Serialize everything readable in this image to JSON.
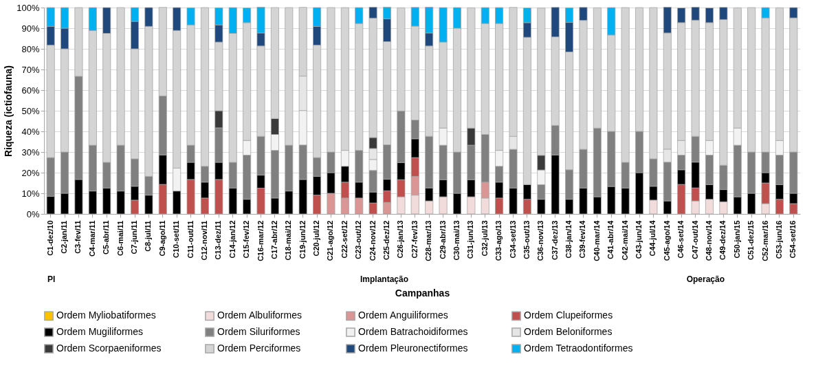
{
  "chart_data": {
    "type": "bar",
    "stacked": true,
    "xlabel": "Campanhas",
    "ylabel": "Riqueza (ictiofauna)",
    "categories": [
      "C1-dez/10",
      "C2-jan/11",
      "C3-fev/11",
      "C4-mar/11",
      "C5-abr/11",
      "C6-mai/11",
      "C7-jun/11",
      "C8-jul/11",
      "C9-ago/11",
      "C10-set/11",
      "C11-out/11",
      "C12-nov/11",
      "C13-dez/11",
      "C14-jan/12",
      "C15-fev/12",
      "C16-mar/12",
      "C17-abr/12",
      "C18-mai/12",
      "C19-jun/12",
      "C20-jul/12",
      "C21-ago/12",
      "C22-set/12",
      "C23-out/12",
      "C24-nov/12",
      "C25-dez/12",
      "C26-jan/13",
      "C27-fev/13",
      "C28-mar/13",
      "C29-abr/13",
      "C30-mai/13",
      "C31-jun/13",
      "C32-jul/13",
      "C33-ago/13",
      "C34-set/13",
      "C35-out/13",
      "C36-nov/13",
      "C37-dez/13",
      "C38-jan/14",
      "C39-fev/14",
      "C40-mar/14",
      "C41-abr/14",
      "C42-mai/14",
      "C43-jun/14",
      "C44-jul/14",
      "C45-ago/14",
      "C46-set/14",
      "C47-out/14",
      "C48-nov/14",
      "C49-dez/14",
      "C50-jan/15",
      "C51-dez/15",
      "C52-mar/16",
      "C53-jun/16",
      "C54-set/16"
    ],
    "series": [
      {
        "name": "Ordem Myliobatiformes",
        "color": "#ffc000",
        "values": [
          null,
          null,
          null,
          null,
          null,
          null,
          null,
          null,
          null,
          null,
          null,
          null,
          null,
          null,
          null,
          null,
          null,
          null,
          null,
          null,
          null,
          null,
          null,
          null,
          null,
          null,
          null,
          null,
          null,
          null,
          null,
          null,
          null,
          null,
          null,
          null,
          null,
          null,
          null,
          null,
          null,
          null,
          null,
          null,
          null,
          null,
          null,
          null,
          null,
          null,
          null,
          null,
          null,
          null
        ]
      },
      {
        "name": "Ordem Albuliformes",
        "color": "#f2dcdb",
        "values": [
          null,
          null,
          null,
          null,
          null,
          null,
          null,
          null,
          null,
          null,
          null,
          null,
          null,
          null,
          null,
          null,
          null,
          null,
          null,
          null,
          null,
          null,
          null,
          null,
          null,
          8.3,
          9.1,
          6.3,
          8.3,
          null,
          8.3,
          7.7,
          null,
          null,
          null,
          null,
          null,
          null,
          null,
          null,
          null,
          null,
          null,
          6.7,
          null,
          null,
          6.3,
          7.1,
          5.9,
          null,
          null,
          5,
          null,
          null
        ]
      },
      {
        "name": "Ordem Anguiliformes",
        "color": "#da9694",
        "values": [
          null,
          null,
          null,
          null,
          null,
          null,
          null,
          null,
          null,
          null,
          null,
          null,
          null,
          null,
          null,
          null,
          null,
          null,
          null,
          null,
          10,
          7.7,
          7.7,
          null,
          5.6,
          null,
          9.1,
          null,
          null,
          null,
          null,
          7.7,
          null,
          null,
          null,
          null,
          null,
          null,
          null,
          null,
          null,
          null,
          null,
          null,
          null,
          null,
          null,
          null,
          null,
          null,
          null,
          null,
          null,
          null
        ]
      },
      {
        "name": "Ordem Clupeiformes",
        "color": "#c0504d",
        "values": [
          null,
          null,
          null,
          null,
          null,
          null,
          6.7,
          null,
          14.3,
          null,
          16.7,
          7.7,
          16.7,
          null,
          null,
          12.5,
          null,
          null,
          null,
          9.1,
          null,
          7.7,
          null,
          5.3,
          5.6,
          8.3,
          9.1,
          null,
          null,
          null,
          null,
          null,
          7.7,
          null,
          7.1,
          null,
          null,
          null,
          null,
          null,
          null,
          null,
          null,
          null,
          null,
          14.3,
          6.3,
          null,
          null,
          null,
          null,
          10,
          7.1,
          5
        ]
      },
      {
        "name": "Ordem Mugiliformes",
        "color": "#000000",
        "values": [
          8.5,
          10,
          16.7,
          11.1,
          12.5,
          11.1,
          6.7,
          9.1,
          14.3,
          11.1,
          8.3,
          7.7,
          8.3,
          12.5,
          7.1,
          6.3,
          7.7,
          11.1,
          16.7,
          9.1,
          10,
          7.7,
          7.7,
          5.3,
          5.6,
          8.3,
          9.1,
          6.3,
          8.3,
          10,
          8.3,
          null,
          7.7,
          12.5,
          7.1,
          7.1,
          28.6,
          7.1,
          12.5,
          8.3,
          13.3,
          12.5,
          20,
          6.7,
          6.3,
          7.1,
          12.5,
          7.1,
          5.9,
          8.3,
          10,
          5,
          7.1,
          5
        ]
      },
      {
        "name": "Ordem Siluriformes",
        "color": "#808080",
        "values": [
          18.8,
          20,
          50,
          22.2,
          12.5,
          22.2,
          13.3,
          9.1,
          28.6,
          null,
          8.3,
          7.7,
          16.7,
          12.5,
          21.4,
          18.8,
          23.1,
          22.2,
          16.7,
          9.1,
          10,
          null,
          15.4,
          10.5,
          16.7,
          25,
          9.1,
          25,
          16.7,
          20,
          16.7,
          23.1,
          7.7,
          18.8,
          null,
          7.1,
          14.3,
          14.3,
          18.8,
          33.3,
          26.7,
          12.5,
          20,
          13.3,
          18.8,
          7.1,
          12.5,
          14.3,
          11.8,
          25,
          20,
          10,
          14.3,
          20
        ]
      },
      {
        "name": "Ordem Batrachoidiformes",
        "color": "#f2f2f2",
        "values": [
          null,
          null,
          null,
          null,
          null,
          null,
          null,
          null,
          null,
          11.1,
          null,
          null,
          null,
          null,
          7.1,
          null,
          7.7,
          null,
          16.7,
          null,
          null,
          7.7,
          null,
          5.3,
          null,
          null,
          null,
          null,
          8.3,
          null,
          null,
          null,
          7.7,
          null,
          null,
          7.1,
          null,
          null,
          null,
          null,
          null,
          null,
          null,
          null,
          null,
          null,
          null,
          7.1,
          null,
          8.3,
          null,
          null,
          7.1,
          null
        ]
      },
      {
        "name": "Ordem Beloniformes",
        "color": "#e6e6e6",
        "values": [
          null,
          null,
          null,
          null,
          null,
          null,
          null,
          null,
          null,
          null,
          null,
          null,
          null,
          null,
          null,
          null,
          null,
          null,
          16.7,
          null,
          null,
          null,
          null,
          5.3,
          null,
          null,
          null,
          null,
          null,
          null,
          null,
          null,
          null,
          6.3,
          null,
          null,
          null,
          null,
          null,
          null,
          null,
          null,
          null,
          null,
          6.3,
          7.1,
          null,
          null,
          null,
          null,
          null,
          null,
          null,
          null
        ]
      },
      {
        "name": "Ordem Scorpaeniformes",
        "color": "#3a3a3a",
        "values": [
          null,
          null,
          null,
          null,
          null,
          null,
          null,
          null,
          null,
          null,
          null,
          null,
          8.3,
          null,
          null,
          null,
          7.7,
          null,
          null,
          null,
          null,
          null,
          null,
          5.3,
          null,
          null,
          null,
          null,
          null,
          null,
          8.3,
          null,
          null,
          null,
          null,
          7.1,
          null,
          null,
          null,
          null,
          null,
          null,
          null,
          null,
          null,
          null,
          null,
          null,
          null,
          null,
          null,
          null,
          null,
          null
        ]
      },
      {
        "name": "Ordem Perciformes",
        "color": "#d4d4d4",
        "values": [
          54.5,
          50,
          33.3,
          55.6,
          62.5,
          66.7,
          53.3,
          72.7,
          42.9,
          66.7,
          58.3,
          76.9,
          33.3,
          62.5,
          57.1,
          43.8,
          53.8,
          66.7,
          33.3,
          54.5,
          70,
          69.2,
          61.5,
          57.9,
          50,
          50,
          45.5,
          43.8,
          41.7,
          60,
          58.3,
          53.8,
          61.5,
          62.5,
          71.4,
          71.4,
          42.9,
          57.1,
          62.5,
          58.3,
          46.7,
          75,
          60,
          73.3,
          56.3,
          57.1,
          56.3,
          57.1,
          70.6,
          58.3,
          70,
          65,
          64.3,
          65
        ]
      },
      {
        "name": "Ordem Pleuronectiformes",
        "color": "#1f497d",
        "values": [
          9.1,
          10,
          null,
          null,
          12.5,
          null,
          13.3,
          9.1,
          null,
          11.1,
          null,
          null,
          8.3,
          null,
          null,
          6.3,
          null,
          null,
          null,
          9.1,
          null,
          null,
          null,
          5.3,
          11.1,
          null,
          null,
          6.3,
          null,
          null,
          null,
          null,
          null,
          null,
          7.1,
          null,
          14.3,
          14.3,
          6.3,
          null,
          null,
          null,
          null,
          null,
          12.5,
          7.1,
          6.3,
          7.1,
          5.9,
          null,
          null,
          null,
          null,
          5
        ]
      },
      {
        "name": "Ordem Tetraodontiformes",
        "color": "#00b0f0",
        "values": [
          9.1,
          10,
          null,
          11.1,
          null,
          null,
          6.7,
          null,
          null,
          null,
          8.3,
          null,
          8.3,
          12.5,
          7.1,
          12.5,
          null,
          null,
          null,
          9.1,
          null,
          null,
          7.7,
          null,
          5.6,
          null,
          9.1,
          12.5,
          16.7,
          10,
          null,
          7.7,
          7.7,
          null,
          7.1,
          null,
          null,
          7.1,
          null,
          null,
          13.3,
          null,
          null,
          null,
          null,
          null,
          null,
          null,
          null,
          null,
          null,
          5,
          null,
          null
        ]
      }
    ],
    "ylim": [
      0,
      100
    ],
    "yticks": [
      {
        "value": 0,
        "label": "0%"
      },
      {
        "value": 10,
        "label": "10%"
      },
      {
        "value": 20,
        "label": "20%"
      },
      {
        "value": 30,
        "label": "30%"
      },
      {
        "value": 40,
        "label": "40%"
      },
      {
        "value": 50,
        "label": "50%"
      },
      {
        "value": 60,
        "label": "60%"
      },
      {
        "value": 70,
        "label": "70%"
      },
      {
        "value": 80,
        "label": "80%"
      },
      {
        "value": 90,
        "label": "90%"
      },
      {
        "value": 100,
        "label": "100%"
      }
    ],
    "grid": "y",
    "legend": "bottom",
    "annotations": [
      "PI",
      "Implantação",
      "Operação"
    ]
  }
}
